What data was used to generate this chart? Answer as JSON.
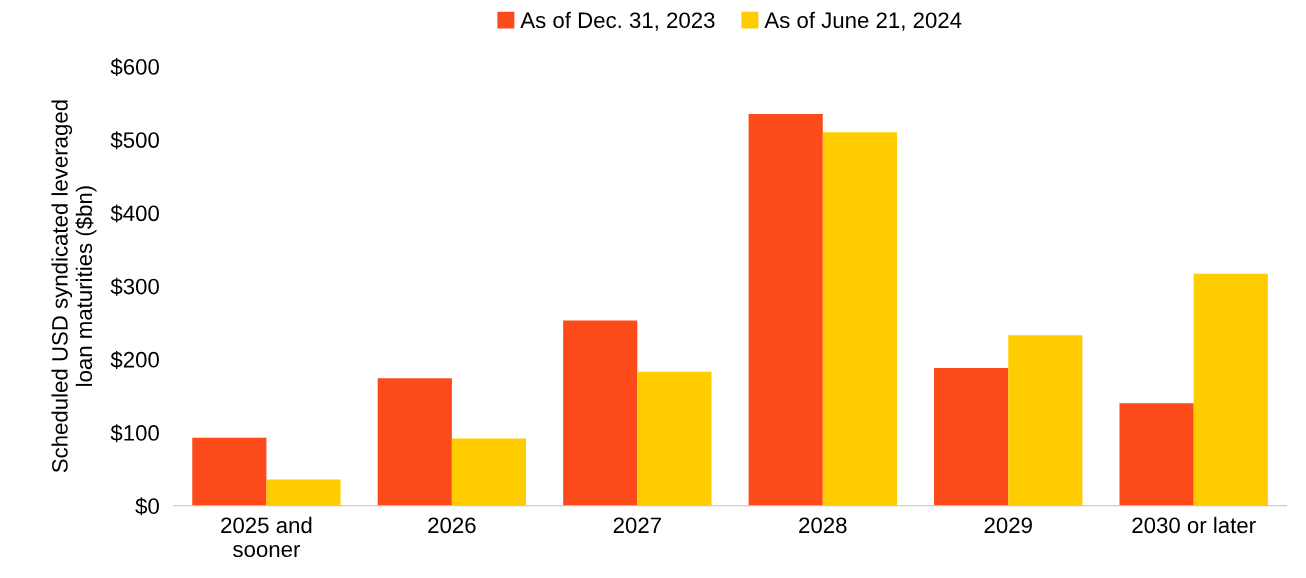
{
  "chart_data": {
    "type": "bar",
    "categories": [
      "2025 and\nsooner",
      "2026",
      "2027",
      "2028",
      "2029",
      "2030 or later"
    ],
    "ylabel": "Scheduled USD syndicated leveraged\nloan maturities ($bn)",
    "series": [
      {
        "name": "As of Dec. 31, 2023",
        "color": "#fc4a1a",
        "values": [
          93,
          174,
          253,
          535,
          188,
          140
        ]
      },
      {
        "name": "As of June 21, 2024",
        "color": "#ffcc00",
        "values": [
          36,
          92,
          183,
          510,
          233,
          317
        ]
      }
    ],
    "ylim": [
      0,
      600
    ],
    "yticks": [
      {
        "value": 0,
        "label": "$0"
      },
      {
        "value": 100,
        "label": "$100"
      },
      {
        "value": 200,
        "label": "$200"
      },
      {
        "value": 300,
        "label": "$300"
      },
      {
        "value": 400,
        "label": "$400"
      },
      {
        "value": 500,
        "label": "$500"
      },
      {
        "value": 600,
        "label": "$600"
      }
    ],
    "grid": false,
    "legend": "top"
  }
}
